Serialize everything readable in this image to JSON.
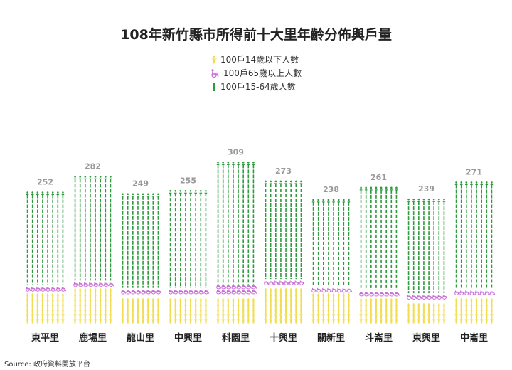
{
  "title": "108年新竹縣市所得前十大里年齡分佈與戶量",
  "legend": [
    {
      "label": "100戶14歲以下人數",
      "color": "#f2dc52",
      "icon": "child-icon"
    },
    {
      "label": "100戶65歲以上人數",
      "color": "#c86fd6",
      "icon": "wheelchair-icon"
    },
    {
      "label": "100戶15-64歲人數",
      "color": "#2e9a3e",
      "icon": "adult-icon"
    }
  ],
  "source": "Source: 政府資料開放平台",
  "colors": {
    "child": "#f2dc52",
    "elderly": "#c86fd6",
    "adult": "#2e9a3e",
    "total_label": "#999999"
  },
  "chart_data": {
    "type": "bar",
    "title": "108年新竹縣市所得前十大里年齡分佈與戶量",
    "categories": [
      "東平里",
      "鹿場里",
      "龍山里",
      "中興里",
      "科園里",
      "十興里",
      "關新里",
      "斗崙里",
      "東興里",
      "中崙里"
    ],
    "totals": [
      252,
      282,
      249,
      255,
      309,
      273,
      238,
      261,
      239,
      271
    ],
    "series": [
      {
        "name": "100戶14歲以下人數",
        "values": [
          61,
          70,
          56,
          56,
          56,
          73,
          59,
          52,
          46,
          54
        ]
      },
      {
        "name": "100戶65歲以上人數",
        "values": [
          12,
          12,
          12,
          12,
          18,
          12,
          12,
          12,
          12,
          12
        ]
      },
      {
        "name": "100戶15-64歲人數",
        "values": [
          179,
          200,
          181,
          187,
          235,
          188,
          167,
          197,
          181,
          205
        ]
      }
    ],
    "stacked": true,
    "legend_position": "top-center",
    "grid": false
  }
}
